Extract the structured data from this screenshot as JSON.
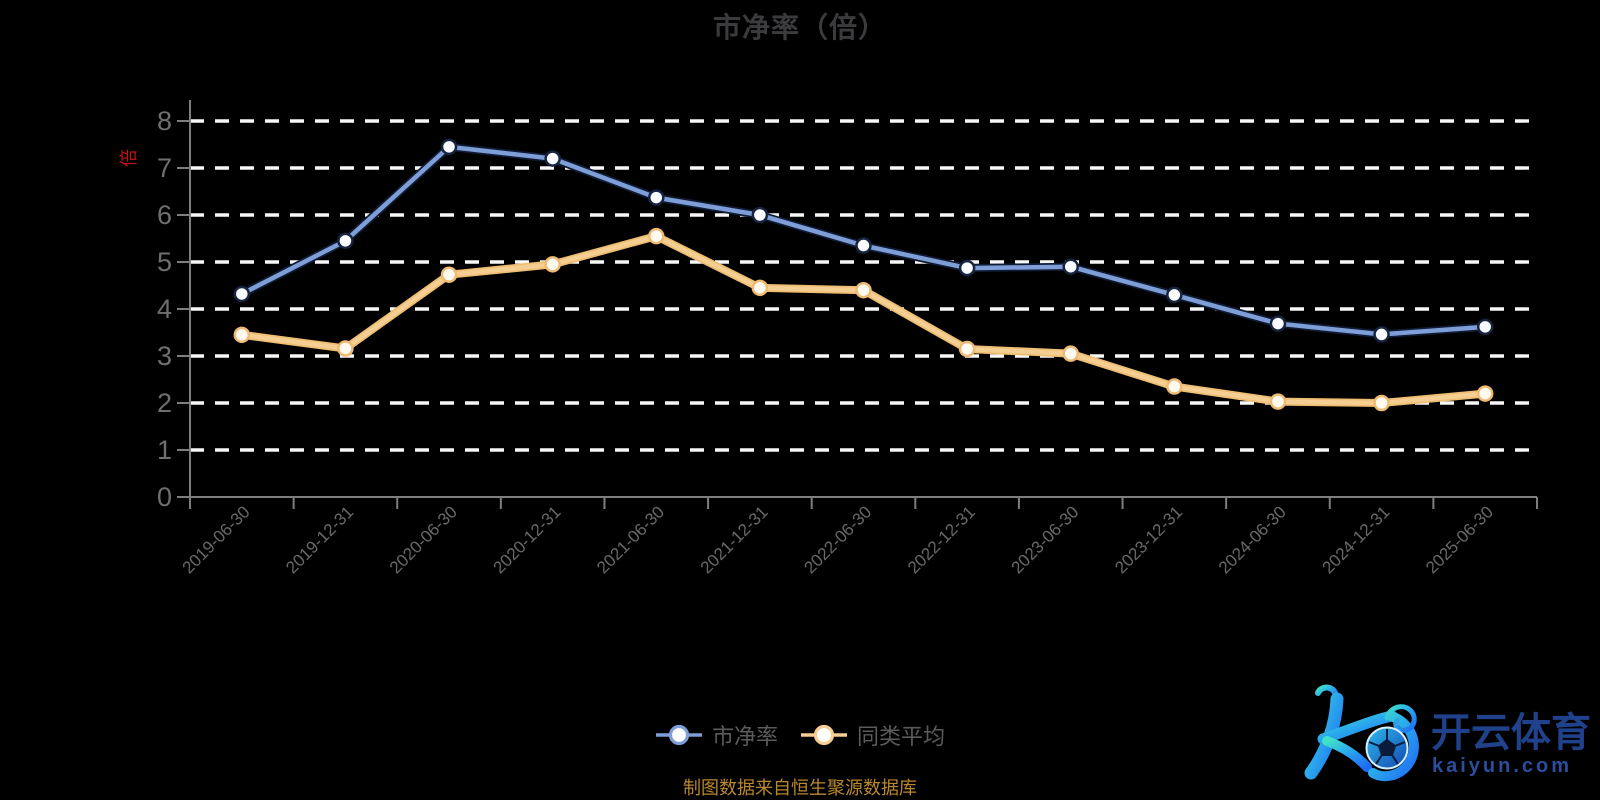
{
  "title": "市净率（倍）",
  "y_axis_name": "倍",
  "legend": {
    "items": [
      {
        "label": "市净率",
        "color": "#7E9ED8"
      },
      {
        "label": "同类平均",
        "color": "#F5CE93"
      }
    ]
  },
  "footer": {
    "source_note": "制图数据来自恒生聚源数据库"
  },
  "watermark": {
    "cn": "开云体育",
    "domain": "kaiyun.com"
  },
  "colors": {
    "background": "#000000",
    "title": "#3B3B3E",
    "y_axis_name": "#C31414",
    "legend_text": "#5B5B5B",
    "footer_text": "#B9882C",
    "series_pb": "#7E9ED8",
    "series_avg": "#F5CE93",
    "logo_gradient_start": "#41E3C6",
    "logo_gradient_end": "#1E6CF5",
    "logo_text": "#20418C"
  },
  "chart_data": {
    "type": "line",
    "title": "市净率（倍）",
    "y_axis_name": "倍",
    "categories": [
      "2019-06-30",
      "2019-12-31",
      "2020-06-30",
      "2020-12-31",
      "2021-06-30",
      "2021-12-31",
      "2022-06-30",
      "2022-12-31",
      "2023-06-30",
      "2023-12-31",
      "2024-06-30",
      "2024-12-31",
      "2025-06-30"
    ],
    "series": [
      {
        "name": "市净率",
        "color": "#7E9ED8",
        "outline": "#101B33",
        "marker_fill": "#FAFCFF",
        "marker_stroke": "#17243F",
        "values": [
          4.32,
          5.45,
          7.45,
          7.2,
          6.37,
          6.0,
          5.35,
          4.87,
          4.9,
          4.3,
          3.69,
          3.46,
          3.62
        ]
      },
      {
        "name": "同类平均",
        "color": "#F5CE93",
        "outline": "#EDBD72",
        "marker_fill": "#FFFAF0",
        "marker_stroke": "#EFBA74",
        "values": [
          3.45,
          3.16,
          4.73,
          4.95,
          5.55,
          4.45,
          4.4,
          3.15,
          3.05,
          2.35,
          2.03,
          2.0,
          2.2
        ]
      }
    ],
    "ylim": [
      0,
      8
    ],
    "y_ticks": [
      0,
      1,
      2,
      3,
      4,
      5,
      6,
      7,
      8
    ],
    "grid": true,
    "grid_style": "white-dashed",
    "legend_position": "bottom",
    "x_label_rotation": -45,
    "styles": {
      "grid_color": "#F7F7F7",
      "axis_color": "#7E7E7E",
      "tick_label_color": "#6F6F6F",
      "x_label_color": "#696969"
    }
  }
}
